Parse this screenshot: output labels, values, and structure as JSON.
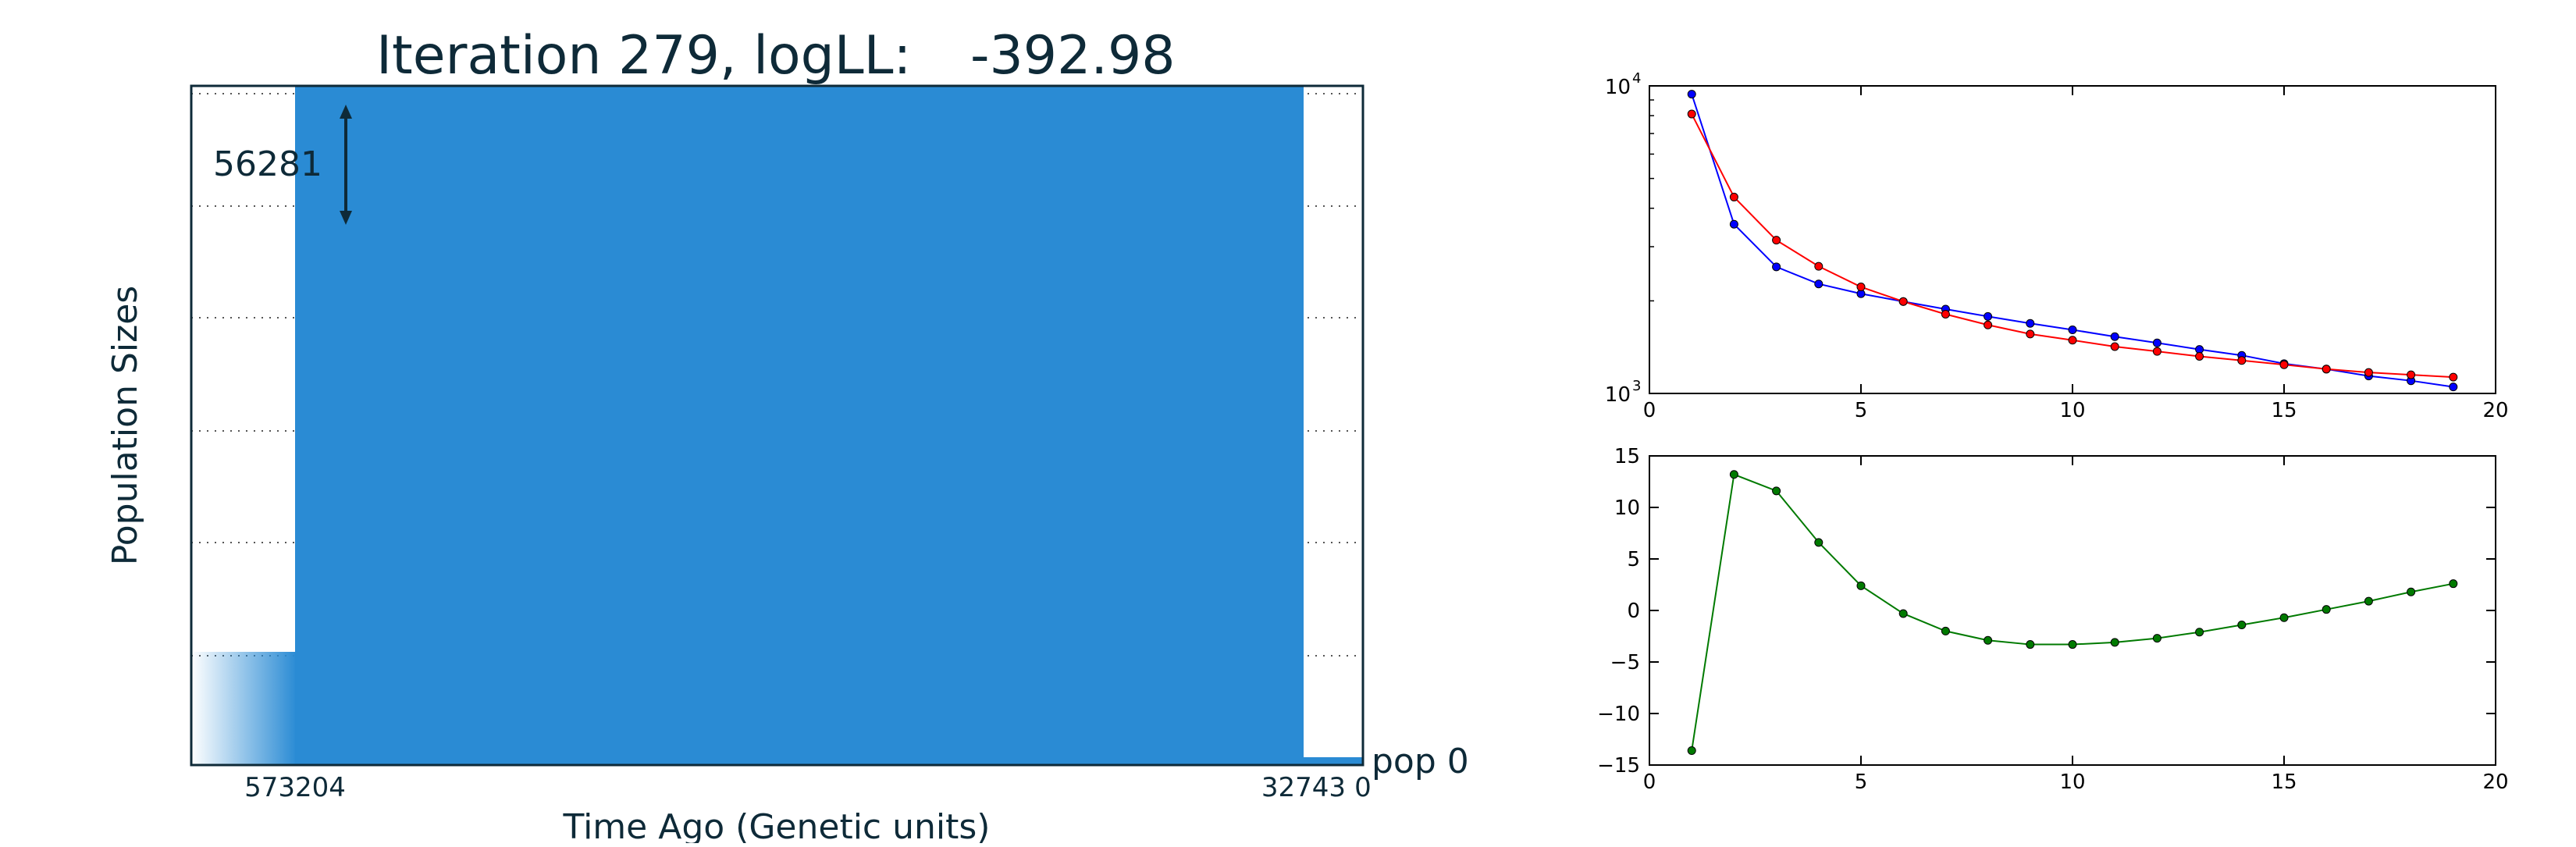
{
  "chart_data": [
    {
      "type": "area",
      "title_prefix": "Iteration 279, logLL:",
      "title_value": "-392.98",
      "xlabel": "Time Ago (Genetic units)",
      "ylabel": "Population Sizes",
      "x_tick_labels": [
        "573204",
        "32743",
        "0"
      ],
      "scale_bar_label": "56281",
      "population_label": "pop 0",
      "fill_color": "#2a8bd4",
      "grid": "dotted horizontal"
    },
    {
      "type": "line",
      "y_scale": "log",
      "xlim": [
        0,
        20
      ],
      "ylim": [
        1000,
        10000
      ],
      "x_ticks": [
        0,
        5,
        10,
        15,
        20
      ],
      "y_tick_labels": [
        {
          "value": 10000,
          "base": "10",
          "exp": "4"
        },
        {
          "value": 1000,
          "base": "10",
          "exp": "3"
        }
      ],
      "grid": false,
      "series": [
        {
          "color": "#0000ff",
          "x": [
            1,
            2,
            3,
            4,
            5,
            6,
            7,
            8,
            9,
            10,
            11,
            12,
            13,
            14,
            15,
            16,
            17,
            18,
            19
          ],
          "values": [
            9400,
            3550,
            2580,
            2270,
            2110,
            1990,
            1880,
            1780,
            1690,
            1610,
            1530,
            1460,
            1390,
            1330,
            1250,
            1200,
            1140,
            1100,
            1050
          ]
        },
        {
          "color": "#ff0000",
          "x": [
            1,
            2,
            3,
            4,
            5,
            6,
            7,
            8,
            9,
            10,
            11,
            12,
            13,
            14,
            15,
            16,
            17,
            18,
            19
          ],
          "values": [
            8100,
            4350,
            3150,
            2590,
            2220,
            1990,
            1810,
            1670,
            1560,
            1490,
            1420,
            1370,
            1320,
            1280,
            1240,
            1200,
            1170,
            1150,
            1130
          ]
        }
      ]
    },
    {
      "type": "line",
      "xlim": [
        0,
        20
      ],
      "ylim": [
        -15,
        15
      ],
      "x_ticks": [
        0,
        5,
        10,
        15,
        20
      ],
      "y_ticks": [
        15,
        10,
        5,
        0,
        -5,
        -10,
        -15
      ],
      "grid": false,
      "series": [
        {
          "color": "#007a00",
          "x": [
            1,
            2,
            3,
            4,
            5,
            6,
            7,
            8,
            9,
            10,
            11,
            12,
            13,
            14,
            15,
            16,
            17,
            18,
            19
          ],
          "values": [
            -13.6,
            13.2,
            11.6,
            6.6,
            2.4,
            -0.3,
            -2.0,
            -2.9,
            -3.3,
            -3.3,
            -3.1,
            -2.7,
            -2.1,
            -1.4,
            -0.7,
            0.1,
            0.9,
            1.8,
            2.6
          ]
        }
      ]
    }
  ]
}
